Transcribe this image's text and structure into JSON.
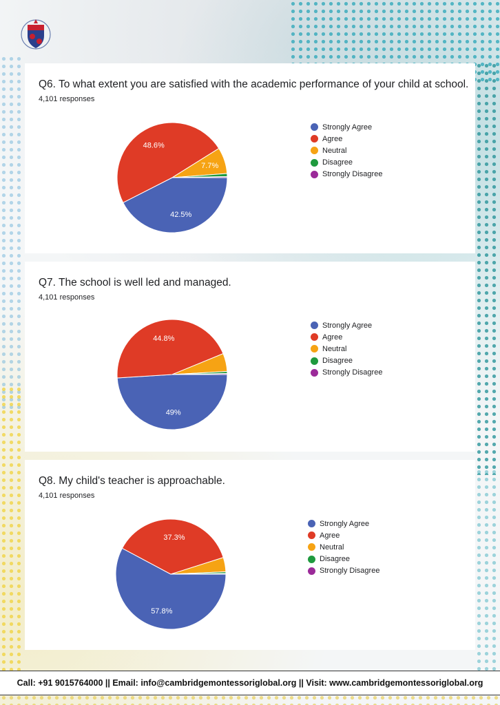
{
  "colors": {
    "strongly_agree": "#4A63B5",
    "agree": "#DF3B26",
    "neutral": "#F6A314",
    "disagree": "#1F9A3E",
    "strongly_disagree": "#9B2A99"
  },
  "legend": [
    "Strongly Agree",
    "Agree",
    "Neutral",
    "Disagree",
    "Strongly Disagree"
  ],
  "chart_data": [
    {
      "type": "pie",
      "title": "Q6. To what extent you are satisfied with the academic performance of your child at school.",
      "subtitle": "4,101 responses",
      "categories": [
        "Strongly Agree",
        "Agree",
        "Neutral",
        "Disagree",
        "Strongly Disagree"
      ],
      "values": [
        42.5,
        48.6,
        7.7,
        0.9,
        0.3
      ],
      "labels": [
        "42.5%",
        "48.6%",
        "7.7%",
        "",
        ""
      ],
      "legend_position": "right"
    },
    {
      "type": "pie",
      "title": "Q7. The school is well led and managed.",
      "subtitle": "4,101 responses",
      "categories": [
        "Strongly Agree",
        "Agree",
        "Neutral",
        "Disagree",
        "Strongly Disagree"
      ],
      "values": [
        49,
        44.8,
        5.3,
        0.6,
        0.3
      ],
      "labels": [
        "49%",
        "44.8%",
        "",
        "",
        ""
      ],
      "legend_position": "right"
    },
    {
      "type": "pie",
      "title": "Q8. My child's teacher is approachable.",
      "subtitle": "4,101 responses",
      "categories": [
        "Strongly Agree",
        "Agree",
        "Neutral",
        "Disagree",
        "Strongly Disagree"
      ],
      "values": [
        57.8,
        37.3,
        4.2,
        0.5,
        0.2
      ],
      "labels": [
        "57.8%",
        "37.3%",
        "",
        "",
        ""
      ],
      "legend_position": "right"
    }
  ],
  "footer": {
    "text": "Call: +91 9015764000 || Email: info@cambridgemontessoriglobal.org || Visit: www.cambridgemontessoriglobal.org"
  },
  "logo": {
    "icon": "school-crest-icon"
  }
}
